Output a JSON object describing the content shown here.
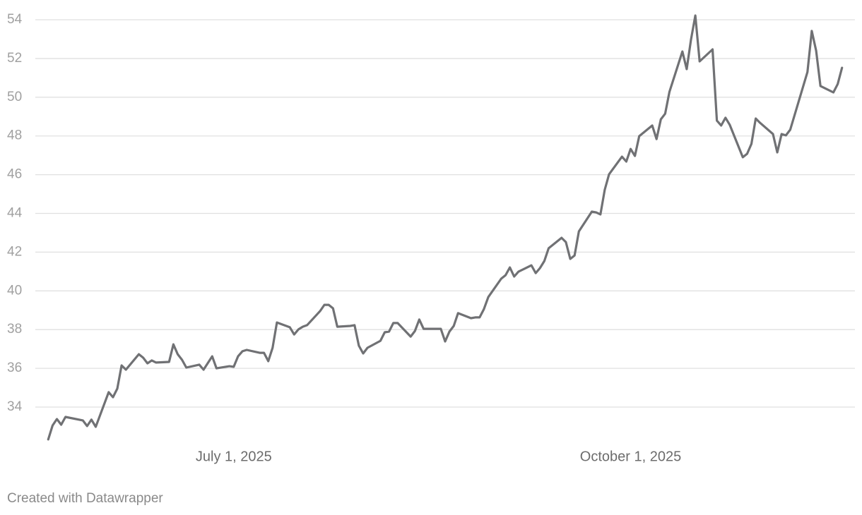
{
  "chart_data": {
    "type": "line",
    "x": [
      "2025-05-19",
      "2025-05-20",
      "2025-05-21",
      "2025-05-22",
      "2025-05-23",
      "2025-05-27",
      "2025-05-28",
      "2025-05-29",
      "2025-05-30",
      "2025-06-02",
      "2025-06-03",
      "2025-06-04",
      "2025-06-05",
      "2025-06-06",
      "2025-06-09",
      "2025-06-10",
      "2025-06-11",
      "2025-06-12",
      "2025-06-13",
      "2025-06-16",
      "2025-06-17",
      "2025-06-18",
      "2025-06-19",
      "2025-06-20",
      "2025-06-23",
      "2025-06-24",
      "2025-06-26",
      "2025-06-27",
      "2025-06-30",
      "2025-07-01",
      "2025-07-02",
      "2025-07-03",
      "2025-07-04",
      "2025-07-07",
      "2025-07-08",
      "2025-07-09",
      "2025-07-10",
      "2025-07-11",
      "2025-07-14",
      "2025-07-15",
      "2025-07-16",
      "2025-07-17",
      "2025-07-18",
      "2025-07-21",
      "2025-07-22",
      "2025-07-23",
      "2025-07-24",
      "2025-07-25",
      "2025-07-28",
      "2025-07-29",
      "2025-07-30",
      "2025-07-31",
      "2025-08-01",
      "2025-08-04",
      "2025-08-05",
      "2025-08-06",
      "2025-08-07",
      "2025-08-08",
      "2025-08-11",
      "2025-08-12",
      "2025-08-13",
      "2025-08-14",
      "2025-08-18",
      "2025-08-19",
      "2025-08-20",
      "2025-08-21",
      "2025-08-22",
      "2025-08-25",
      "2025-08-26",
      "2025-08-27",
      "2025-08-28",
      "2025-08-29",
      "2025-09-01",
      "2025-09-02",
      "2025-09-03",
      "2025-09-04",
      "2025-09-05",
      "2025-09-08",
      "2025-09-09",
      "2025-09-10",
      "2025-09-11",
      "2025-09-12",
      "2025-09-15",
      "2025-09-16",
      "2025-09-17",
      "2025-09-18",
      "2025-09-19",
      "2025-09-22",
      "2025-09-23",
      "2025-09-24",
      "2025-09-25",
      "2025-09-26",
      "2025-09-29",
      "2025-09-30",
      "2025-10-01",
      "2025-10-02",
      "2025-10-03",
      "2025-10-06",
      "2025-10-07",
      "2025-10-08",
      "2025-10-09",
      "2025-10-10",
      "2025-10-13",
      "2025-10-14",
      "2025-10-15",
      "2025-10-16",
      "2025-10-17",
      "2025-10-20",
      "2025-10-21",
      "2025-10-22",
      "2025-10-23",
      "2025-10-24",
      "2025-10-27",
      "2025-10-28",
      "2025-10-29",
      "2025-10-30",
      "2025-10-31",
      "2025-11-03",
      "2025-11-04",
      "2025-11-05",
      "2025-11-06",
      "2025-11-07",
      "2025-11-11",
      "2025-11-12",
      "2025-11-13",
      "2025-11-14",
      "2025-11-17",
      "2025-11-18",
      "2025-11-19"
    ],
    "series": [
      {
        "color": "#707174",
        "values": [
          32.33,
          33.05,
          33.38,
          33.09,
          33.49,
          33.31,
          33.02,
          33.35,
          32.98,
          34.77,
          34.51,
          34.95,
          36.15,
          35.93,
          36.73,
          36.55,
          36.26,
          36.41,
          36.3,
          36.33,
          37.24,
          36.73,
          36.44,
          36.04,
          36.19,
          35.93,
          36.62,
          36.0,
          36.11,
          36.08,
          36.62,
          36.88,
          36.95,
          36.8,
          36.8,
          36.37,
          37.06,
          38.37,
          38.12,
          37.75,
          38.01,
          38.15,
          38.23,
          38.95,
          39.28,
          39.28,
          39.1,
          38.15,
          38.19,
          38.23,
          37.17,
          36.77,
          37.06,
          37.42,
          37.86,
          37.9,
          38.34,
          38.34,
          37.64,
          37.93,
          38.52,
          38.04,
          38.04,
          37.39,
          37.9,
          38.19,
          38.85,
          38.59,
          38.63,
          38.63,
          39.06,
          39.68,
          40.63,
          40.81,
          41.21,
          40.74,
          40.99,
          41.32,
          40.92,
          41.18,
          41.54,
          42.2,
          42.74,
          42.52,
          41.65,
          41.83,
          43.07,
          44.09,
          44.05,
          43.95,
          45.22,
          46.02,
          46.93,
          46.68,
          47.33,
          46.97,
          47.99,
          48.54,
          47.84,
          48.86,
          49.15,
          50.28,
          52.36,
          51.45,
          52.98,
          54.22,
          51.85,
          52.47,
          48.79,
          48.54,
          48.94,
          48.57,
          46.9,
          47.08,
          47.59,
          48.9,
          48.68,
          48.1,
          47.15,
          48.1,
          48.03,
          48.32,
          51.3,
          53.42,
          52.4,
          50.58,
          50.25,
          50.68,
          51.52
        ]
      }
    ],
    "xlim": [
      "2025-05-16",
      "2025-11-22"
    ],
    "xticks": [
      {
        "value": "2025-07-01",
        "label": "July 1, 2025"
      },
      {
        "value": "2025-10-01",
        "label": "October 1, 2025"
      }
    ],
    "ylim": [
      32,
      54.5
    ],
    "yticks": [
      34,
      36,
      38,
      40,
      42,
      44,
      46,
      48,
      50,
      52,
      54
    ],
    "grid": true,
    "footer": "Created with Datawrapper"
  }
}
